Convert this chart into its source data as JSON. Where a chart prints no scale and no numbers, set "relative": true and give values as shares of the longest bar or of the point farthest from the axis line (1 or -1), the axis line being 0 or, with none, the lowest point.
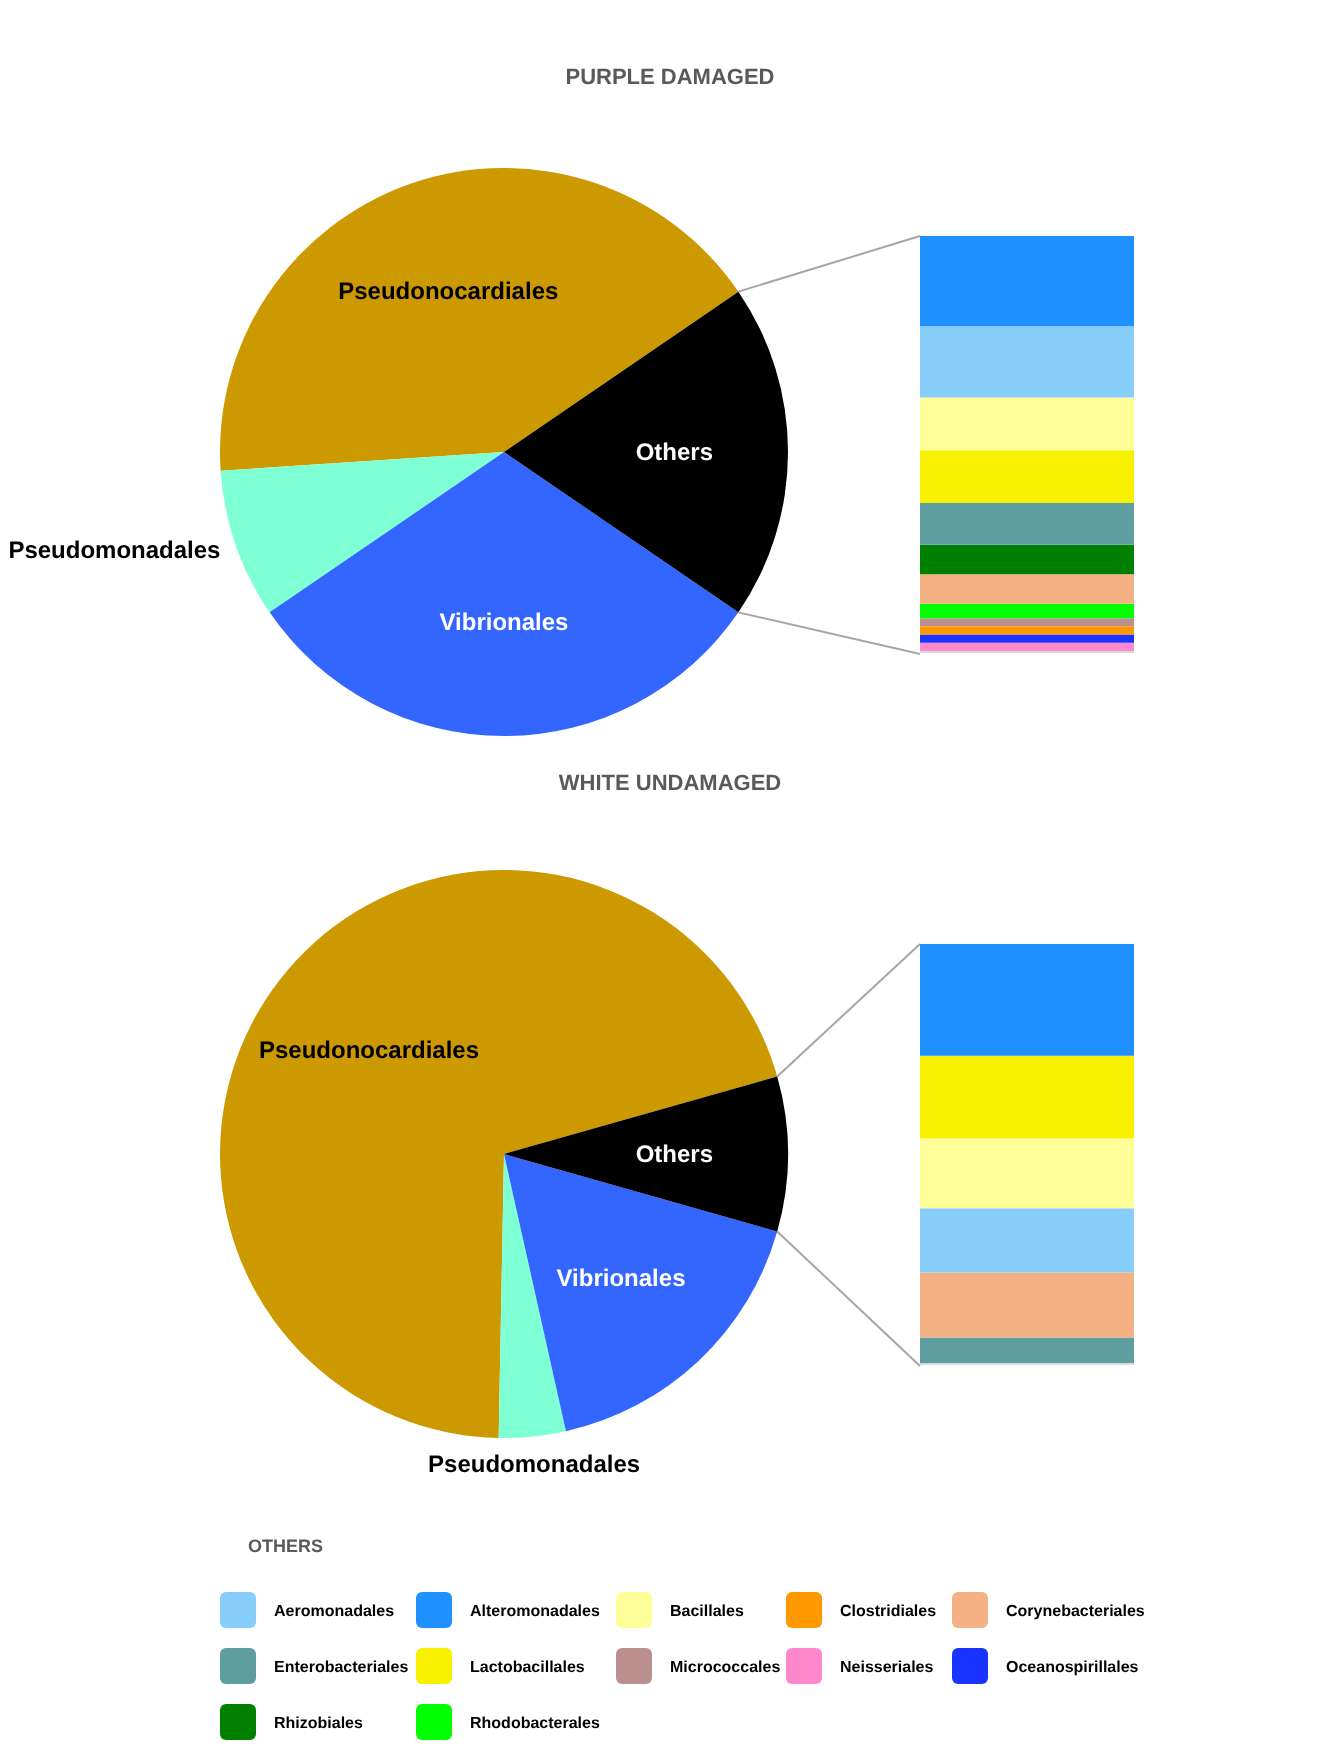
{
  "chart_data": [
    {
      "type": "pie",
      "title": "PURPLE DAMAGED",
      "categories": [
        "Pseudonocardiales",
        "Pseudomonadales",
        "Vibrionales",
        "Others"
      ],
      "values": [
        41.5,
        8.5,
        30.9,
        19.1
      ],
      "colors": [
        "#cc9900",
        "#7fffd4",
        "#3366ff",
        "#000000"
      ]
    },
    {
      "type": "bar",
      "stacked": true,
      "relative": true,
      "categories": [
        null
      ],
      "legend": "bottom",
      "legend_title": "OTHERS",
      "series": [
        {
          "name": "Neisseriales",
          "color": "#ff88cc",
          "values": [
            0.022
          ]
        },
        {
          "name": "Oceanospirillales",
          "color": "#1a33ff",
          "values": [
            0.02
          ]
        },
        {
          "name": "Clostridiales",
          "color": "#ff9900",
          "values": [
            0.02
          ]
        },
        {
          "name": "Micrococcales",
          "color": "#bc8f8f",
          "values": [
            0.019
          ]
        },
        {
          "name": "Rhodobacterales",
          "color": "#00ff00",
          "values": [
            0.035
          ]
        },
        {
          "name": "Corynebacteriales",
          "color": "#f4b183",
          "values": [
            0.071
          ]
        },
        {
          "name": "Rhizobiales",
          "color": "#008000",
          "values": [
            0.071
          ]
        },
        {
          "name": "Enterobacteriales",
          "color": "#5f9ea0",
          "values": [
            0.1
          ]
        },
        {
          "name": "Lactobacillales",
          "color": "#f7f000",
          "values": [
            0.127
          ]
        },
        {
          "name": "Bacillales",
          "color": "#ffff99",
          "values": [
            0.127
          ]
        },
        {
          "name": "Aeromonadales",
          "color": "#87cefa",
          "values": [
            0.171
          ]
        },
        {
          "name": "Alteromonadales",
          "color": "#1e90ff",
          "values": [
            0.217
          ]
        }
      ]
    },
    {
      "type": "pie",
      "title": "WHITE UNDAMAGED",
      "categories": [
        "Pseudonocardiales",
        "Pseudomonadales",
        "Vibrionales",
        "Others"
      ],
      "values": [
        70.3,
        3.8,
        17.1,
        8.8
      ],
      "colors": [
        "#cc9900",
        "#7fffd4",
        "#3366ff",
        "#000000"
      ]
    },
    {
      "type": "bar",
      "stacked": true,
      "relative": true,
      "categories": [
        null
      ],
      "series": [
        {
          "name": "Enterobacteriales",
          "color": "#5f9ea0",
          "values": [
            0.063
          ]
        },
        {
          "name": "Corynebacteriales",
          "color": "#f4b183",
          "values": [
            0.155
          ]
        },
        {
          "name": "Aeromonadales",
          "color": "#87cefa",
          "values": [
            0.153
          ]
        },
        {
          "name": "Bacillales",
          "color": "#ffff99",
          "values": [
            0.166
          ]
        },
        {
          "name": "Lactobacillales",
          "color": "#f7f000",
          "values": [
            0.197
          ]
        },
        {
          "name": "Alteromonadales",
          "color": "#1e90ff",
          "values": [
            0.266
          ]
        }
      ]
    }
  ]
}
